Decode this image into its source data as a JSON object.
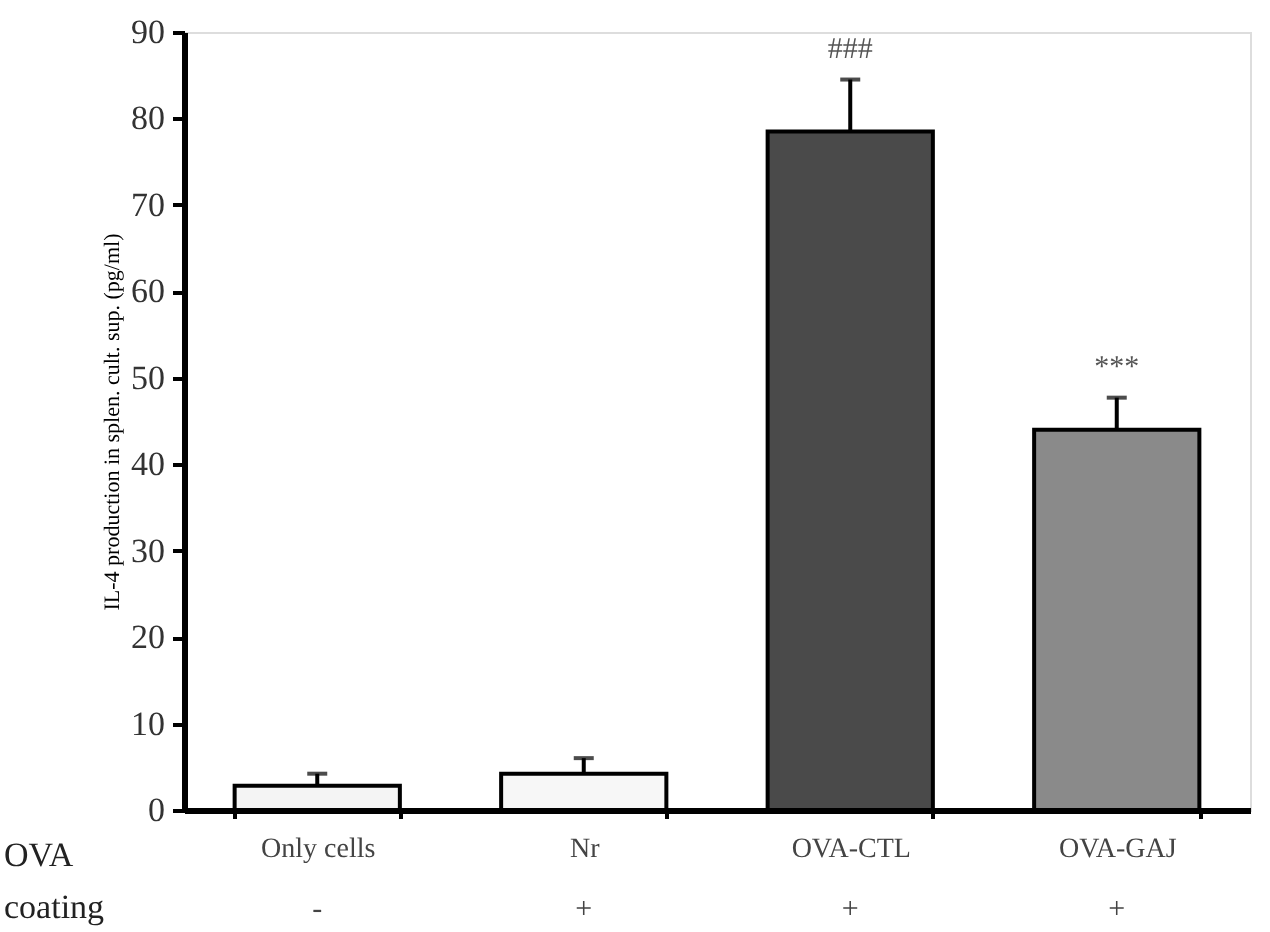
{
  "chart_data": {
    "type": "bar",
    "ylabel": "IL-4 production in splen. cult. sup. (pg/ml)",
    "categories": [
      "Only cells",
      "Nr",
      "OVA-CTL",
      "OVA-GAJ"
    ],
    "values": [
      2.8,
      4.2,
      78.5,
      44.0
    ],
    "errors": [
      [
        2.8,
        4.2
      ],
      [
        4.2,
        6.0
      ],
      [
        78.5,
        84.5
      ],
      [
        44.0,
        47.7
      ]
    ],
    "colors": [
      "#f4f4f4",
      "#f7f7f7",
      "#4a4a4a",
      "#8a8a8a"
    ],
    "ylim": [
      0,
      90
    ],
    "yticks": [
      0,
      10,
      20,
      30,
      40,
      50,
      60,
      70,
      80,
      90
    ],
    "grid": false,
    "annotations": [
      "###",
      "***",
      "OVA",
      "coating",
      "-",
      "+",
      "+",
      "+"
    ]
  }
}
